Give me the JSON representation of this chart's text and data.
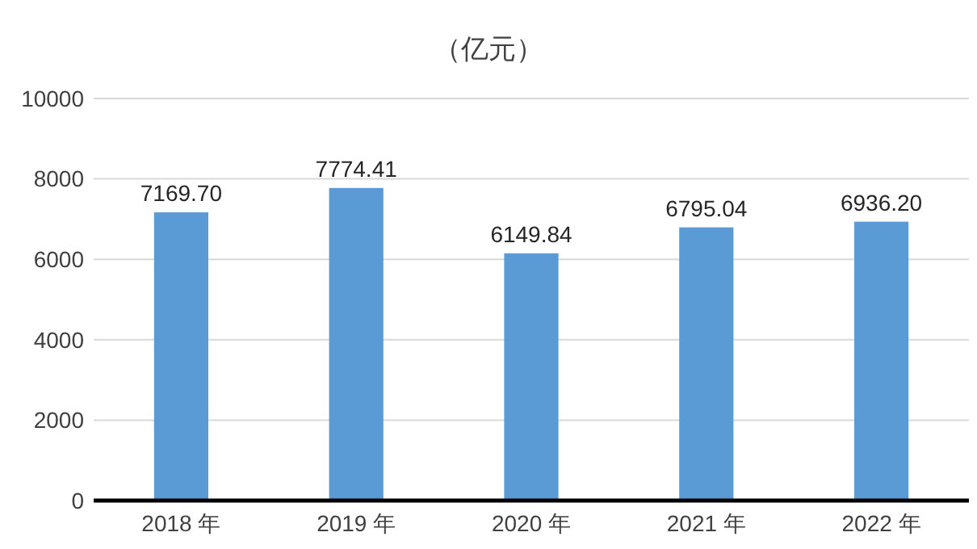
{
  "chart_data": {
    "type": "bar",
    "title": "（亿元）",
    "categories": [
      "2018 年",
      "2019 年",
      "2020 年",
      "2021 年",
      "2022 年"
    ],
    "values": [
      7169.7,
      7774.41,
      6149.84,
      6795.04,
      6936.2
    ],
    "value_labels": [
      "7169.70",
      "7774.41",
      "6149.84",
      "6795.04",
      "6936.20"
    ],
    "color": "#5b9bd5",
    "ylim": [
      0,
      10000
    ],
    "yticks": [
      0,
      2000,
      4000,
      6000,
      8000,
      10000
    ],
    "grid": "y"
  }
}
